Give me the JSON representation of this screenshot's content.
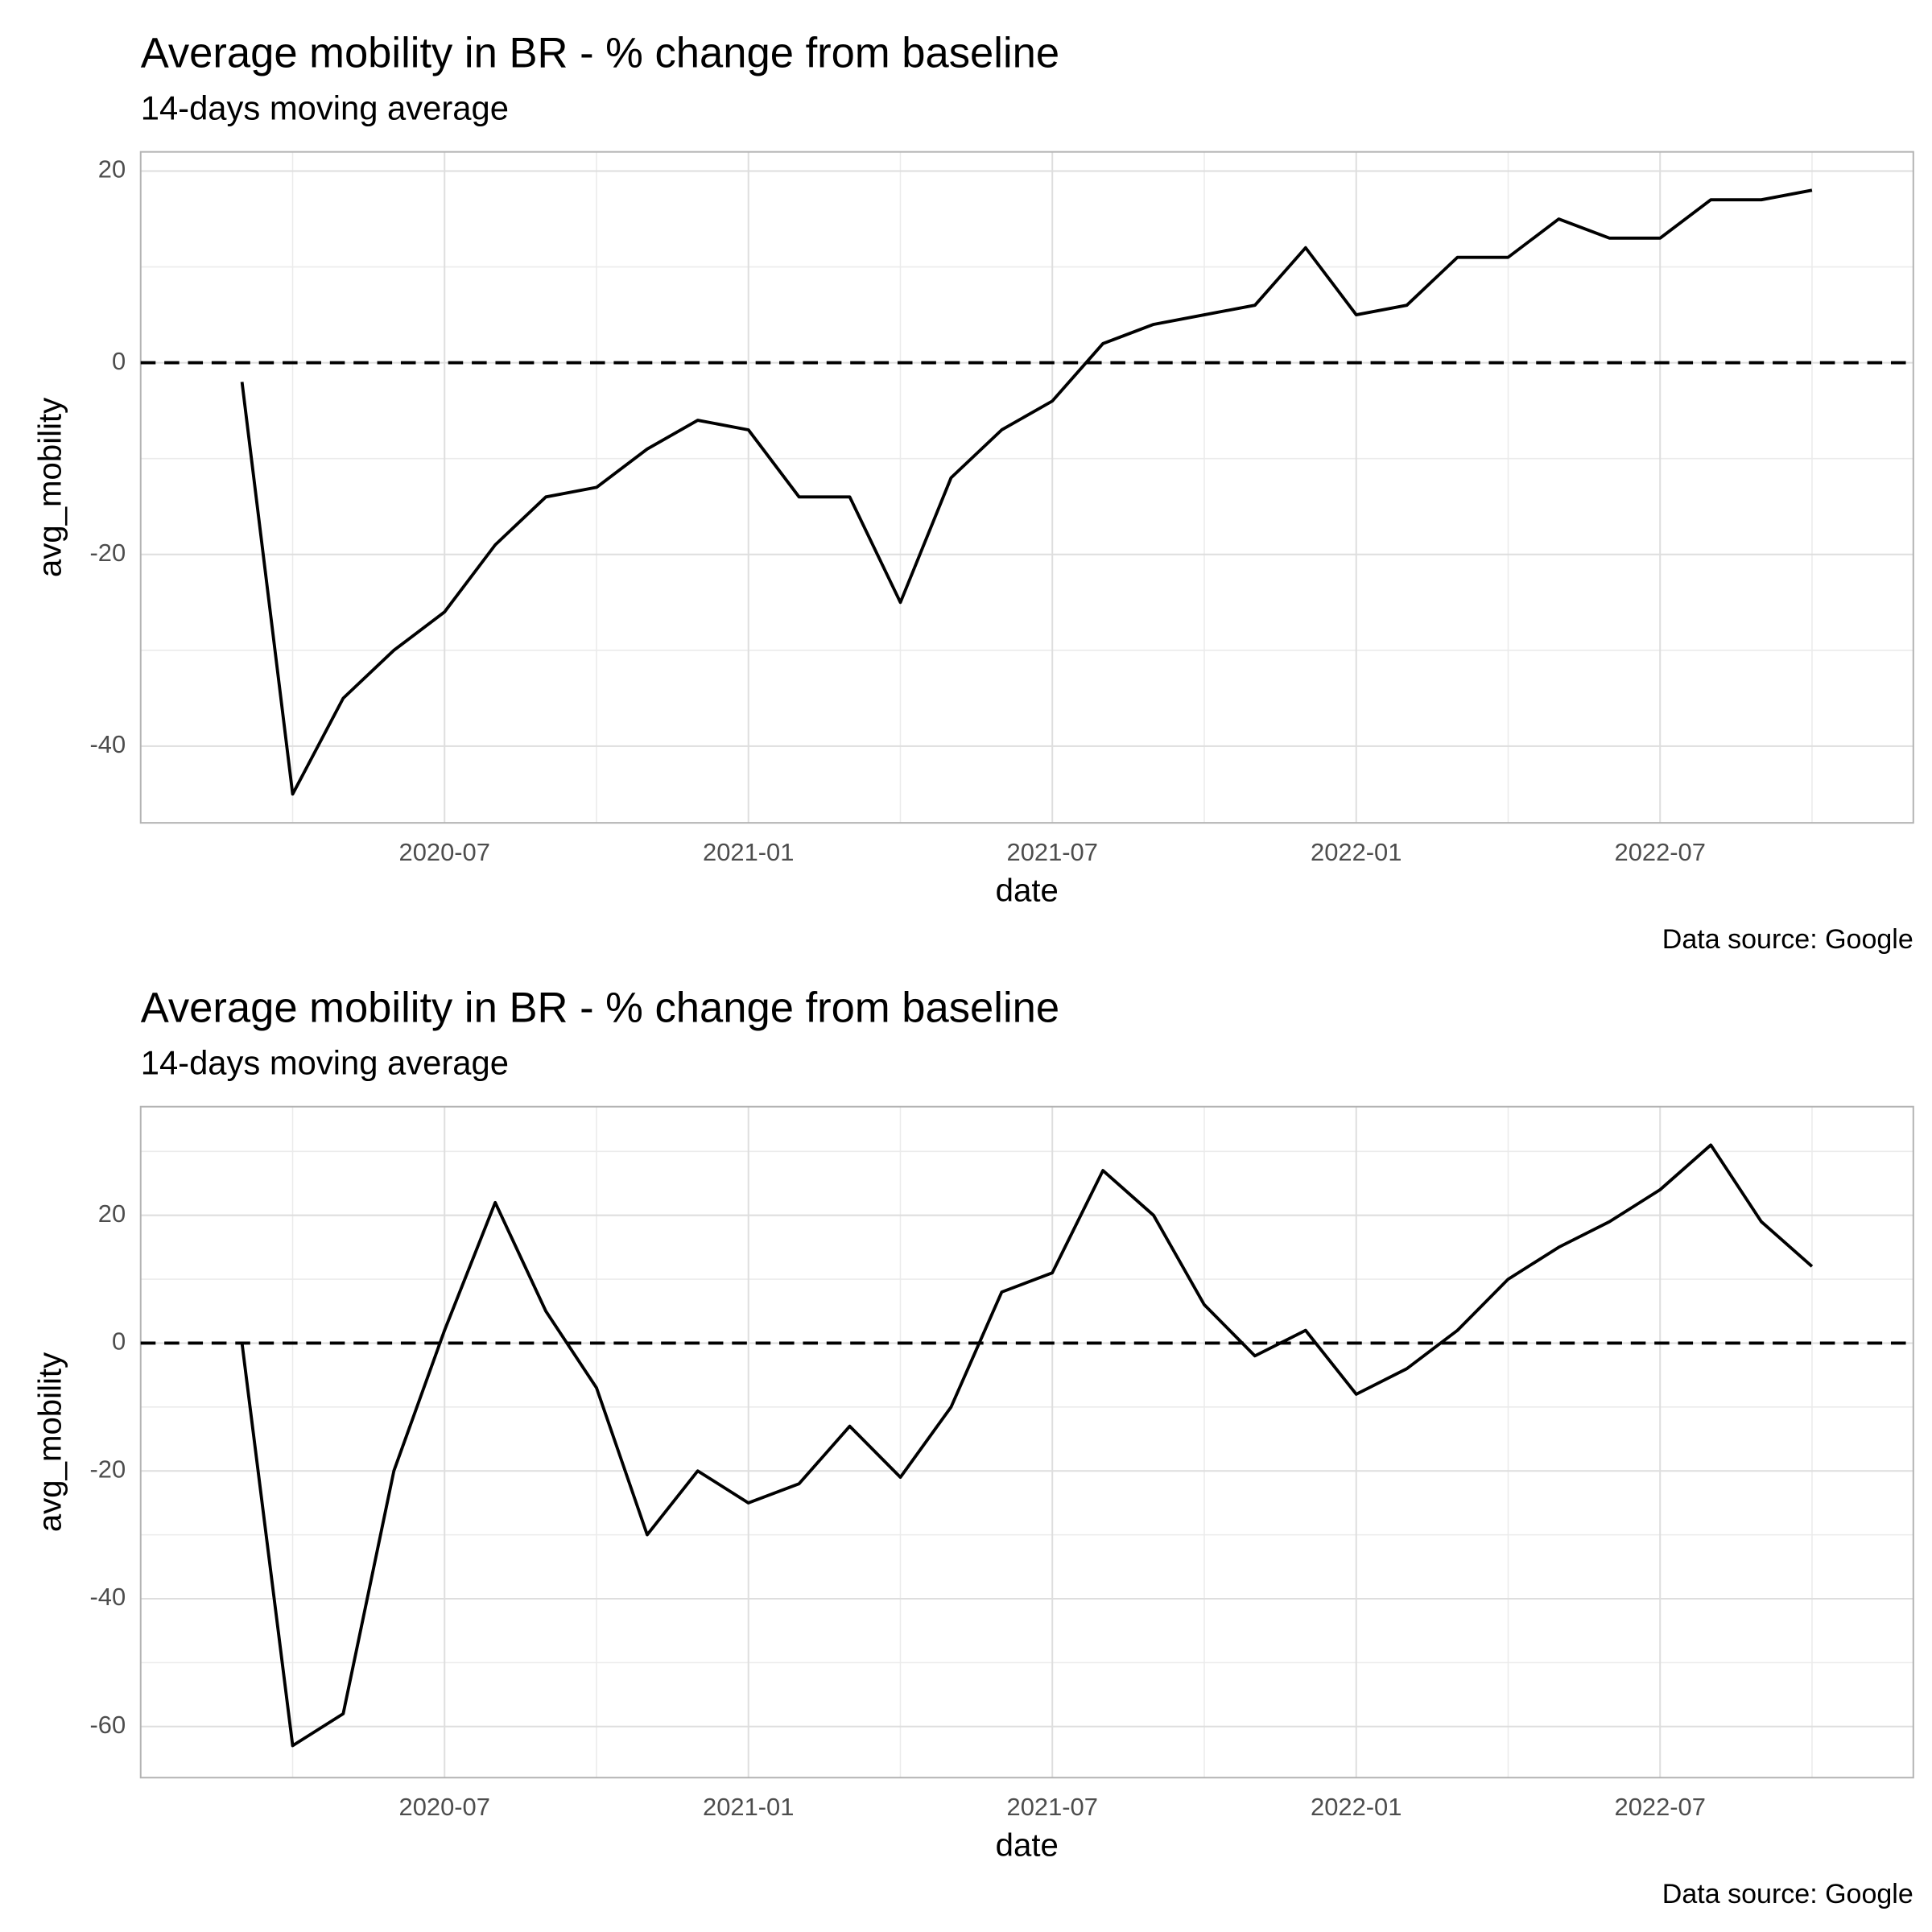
{
  "chart_data": [
    {
      "type": "line",
      "title": "Average mobility in BR - % change from baseline",
      "subtitle": "14-days moving average",
      "xlabel": "date",
      "ylabel": "avg_mobility",
      "caption": "Data source: Google",
      "x": [
        "2020-03",
        "2020-04",
        "2020-05",
        "2020-06",
        "2020-07",
        "2020-08",
        "2020-09",
        "2020-10",
        "2020-11",
        "2020-12",
        "2021-01",
        "2021-02",
        "2021-03",
        "2021-04",
        "2021-05",
        "2021-06",
        "2021-07",
        "2021-08",
        "2021-09",
        "2021-10",
        "2021-11",
        "2021-12",
        "2022-01",
        "2022-02",
        "2022-03",
        "2022-04",
        "2022-05",
        "2022-06",
        "2022-07",
        "2022-08",
        "2022-09",
        "2022-10"
      ],
      "series": [
        {
          "name": "avg_mobility",
          "color": "#000000",
          "values": [
            -2,
            -45,
            -35,
            -30,
            -26,
            -19,
            -14,
            -13,
            -9,
            -6,
            -7,
            -14,
            -14,
            -25,
            -12,
            -7,
            -4,
            2,
            4,
            5,
            6,
            12,
            5,
            6,
            11,
            11,
            15,
            13,
            13,
            17,
            17,
            18
          ]
        }
      ],
      "xlim": [
        "2020-01",
        "2022-12"
      ],
      "xticks": [
        "2020-07",
        "2021-01",
        "2021-07",
        "2022-01",
        "2022-07"
      ],
      "ylim": [
        -48,
        22
      ],
      "yticks": [
        -40,
        -20,
        0,
        20
      ],
      "hline": 0,
      "grid": true
    },
    {
      "type": "line",
      "title": "Average mobility in BR - % change from baseline",
      "subtitle": "14-days moving average",
      "xlabel": "date",
      "ylabel": "avg_mobility",
      "caption": "Data source: Google",
      "x": [
        "2020-03",
        "2020-04",
        "2020-05",
        "2020-06",
        "2020-07",
        "2020-08",
        "2020-09",
        "2020-10",
        "2020-11",
        "2020-12",
        "2021-01",
        "2021-02",
        "2021-03",
        "2021-04",
        "2021-05",
        "2021-06",
        "2021-07",
        "2021-08",
        "2021-09",
        "2021-10",
        "2021-11",
        "2021-12",
        "2022-01",
        "2022-02",
        "2022-03",
        "2022-04",
        "2022-05",
        "2022-06",
        "2022-07",
        "2022-08",
        "2022-09",
        "2022-10"
      ],
      "series": [
        {
          "name": "avg_mobility",
          "color": "#000000",
          "values": [
            0,
            -63,
            -58,
            -20,
            2,
            22,
            5,
            -7,
            -30,
            -20,
            -25,
            -22,
            -13,
            -21,
            -10,
            8,
            11,
            27,
            20,
            6,
            -2,
            2,
            -8,
            -4,
            2,
            10,
            15,
            19,
            24,
            31,
            19,
            12
          ]
        }
      ],
      "xlim": [
        "2020-01",
        "2022-12"
      ],
      "xticks": [
        "2020-07",
        "2021-01",
        "2021-07",
        "2022-01",
        "2022-07"
      ],
      "ylim": [
        -68,
        37
      ],
      "yticks": [
        -60,
        -40,
        -20,
        0,
        20
      ],
      "hline": 0,
      "grid": true
    }
  ]
}
